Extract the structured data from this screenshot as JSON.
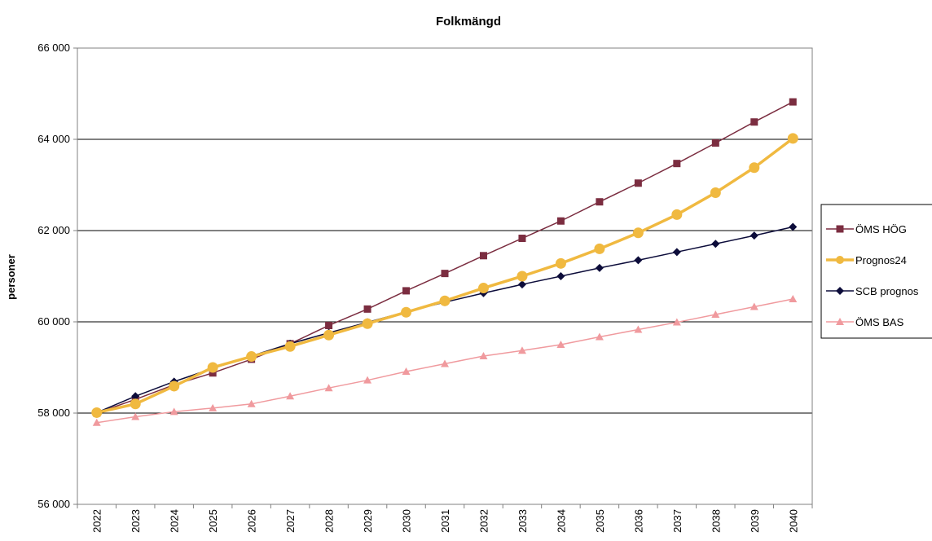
{
  "chart_data": {
    "type": "line",
    "title": "Folkmängd",
    "xlabel": "",
    "ylabel": "personer",
    "ylim": [
      56000,
      66000
    ],
    "yticks": [
      "56 000",
      "58 000",
      "60 000",
      "62 000",
      "64 000",
      "66 000"
    ],
    "ytick_values": [
      56000,
      58000,
      60000,
      62000,
      64000,
      66000
    ],
    "grid": true,
    "legend_position": "right",
    "x": [
      "2022",
      "2023",
      "2024",
      "2025",
      "2026",
      "2027",
      "2028",
      "2029",
      "2030",
      "2031",
      "2032",
      "2033",
      "2034",
      "2035",
      "2036",
      "2037",
      "2038",
      "2039",
      "2040"
    ],
    "series": [
      {
        "name": "ÖMS HÖG",
        "color": "#7b2d40",
        "marker": "square",
        "values": [
          58000,
          58300,
          58620,
          58880,
          59180,
          59520,
          59920,
          60280,
          60680,
          61060,
          61450,
          61830,
          62210,
          62630,
          63040,
          63470,
          63920,
          64380,
          64820
        ]
      },
      {
        "name": "Prognos24",
        "color": "#f0b940",
        "marker": "circle",
        "values": [
          58010,
          58200,
          58590,
          59000,
          59240,
          59460,
          59710,
          59960,
          60210,
          60460,
          60740,
          61000,
          61280,
          61600,
          61950,
          62350,
          62830,
          63380,
          64020
        ]
      },
      {
        "name": "SCB prognos",
        "color": "#0c0c3a",
        "marker": "diamond",
        "values": [
          58010,
          58370,
          58690,
          58980,
          59250,
          59520,
          59760,
          59990,
          60220,
          60430,
          60630,
          60820,
          61000,
          61180,
          61350,
          61530,
          61710,
          61890,
          62080
        ]
      },
      {
        "name": "ÖMS BAS",
        "color": "#f09a9e",
        "marker": "triangle",
        "values": [
          57790,
          57920,
          58030,
          58110,
          58200,
          58370,
          58550,
          58720,
          58910,
          59080,
          59250,
          59370,
          59500,
          59670,
          59830,
          59990,
          60160,
          60330,
          60500
        ]
      }
    ]
  }
}
